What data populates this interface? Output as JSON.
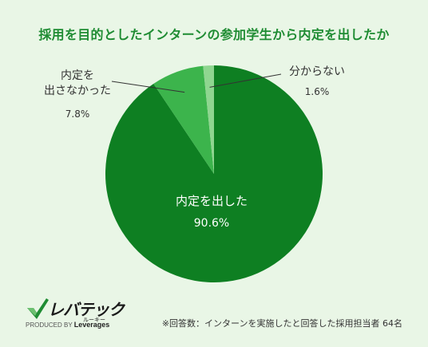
{
  "title": "採用を目的としたインターンの参加学生から内定を出したか",
  "chart_data": {
    "type": "pie",
    "title": "採用を目的としたインターンの参加学生から内定を出したか",
    "slices": [
      {
        "label": "内定を出した",
        "value": 90.6,
        "value_label": "90.6%",
        "color": "#0e7f22"
      },
      {
        "label": "内定を\n出さなかった",
        "value": 7.8,
        "value_label": "7.8%",
        "color": "#3cb44c"
      },
      {
        "label": "分からない",
        "value": 1.6,
        "value_label": "1.6%",
        "color": "#8fd690"
      }
    ]
  },
  "logo": {
    "name": "レバテック",
    "sub": "ルーキー",
    "produced_by": "PRODUCED BY",
    "brand": "Leverages"
  },
  "note": "※回答数：インターンを実施したと回答した採用担当者 64名"
}
